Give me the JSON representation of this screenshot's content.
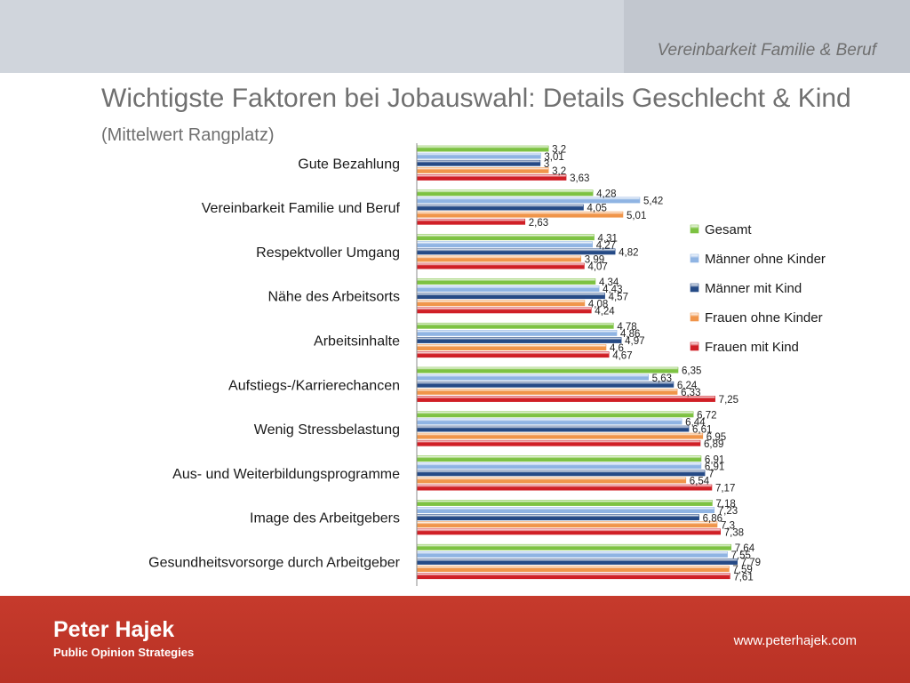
{
  "header": {
    "section_label": "Vereinbarkeit Familie & Beruf"
  },
  "slide": {
    "title": "Wichtigste Faktoren bei Jobauswahl: Details Geschlecht & Kind",
    "subtitle": "(Mittelwert Rangplatz)"
  },
  "footer": {
    "brand_name": "Peter Hajek",
    "brand_tagline": "Public Opinion Strategies",
    "url": "www.peterhajek.com"
  },
  "chart_data": {
    "type": "bar",
    "orientation": "horizontal",
    "categories": [
      "Gute Bezahlung",
      "Vereinbarkeit Familie und Beruf",
      "Respektvoller Umgang",
      "Nähe des Arbeitsorts",
      "Arbeitsinhalte",
      "Aufstiegs-/Karrierechancen",
      "Wenig Stressbelastung",
      "Aus- und Weiterbildungsprogramme",
      "Image des Arbeitgebers",
      "Gesundheitsvorsorge durch Arbeitgeber"
    ],
    "series": [
      {
        "name": "Gesamt",
        "color": "#7dc242",
        "values": [
          3.2,
          4.28,
          4.31,
          4.34,
          4.78,
          6.35,
          6.72,
          6.91,
          7.18,
          7.64
        ],
        "labels": [
          "3,2",
          "4,28",
          "4,31",
          "4,34",
          "4,78",
          "6,35",
          "6,72",
          "6,91",
          "7,18",
          "7,64"
        ]
      },
      {
        "name": "Männer ohne Kinder",
        "color": "#8fb4e3",
        "values": [
          3.01,
          5.42,
          4.27,
          4.43,
          4.86,
          5.63,
          6.44,
          6.91,
          7.23,
          7.55
        ],
        "labels": [
          "3,01",
          "5,42",
          "4,27",
          "4,43",
          "4,86",
          "5,63",
          "6,44",
          "6,91",
          "7,23",
          "7,55"
        ]
      },
      {
        "name": "Männer mit Kind",
        "color": "#254a86",
        "values": [
          3,
          4.05,
          4.82,
          4.57,
          4.97,
          6.24,
          6.61,
          7,
          6.86,
          7.79
        ],
        "labels": [
          "3",
          "4,05",
          "4,82",
          "4,57",
          "4,97",
          "6,24",
          "6,61",
          "7",
          "6,86",
          "7,79"
        ]
      },
      {
        "name": "Frauen ohne Kinder",
        "color": "#f0954a",
        "values": [
          3.2,
          5.01,
          3.99,
          4.08,
          4.6,
          6.33,
          6.95,
          6.54,
          7.3,
          7.59
        ],
        "labels": [
          "3,2",
          "5,01",
          "3,99",
          "4,08",
          "4,6",
          "6,33",
          "6,95",
          "6,54",
          "7,3",
          "7,59"
        ]
      },
      {
        "name": "Frauen mit Kind",
        "color": "#d01f26",
        "values": [
          3.63,
          2.63,
          4.07,
          4.24,
          4.67,
          7.25,
          6.89,
          7.17,
          7.38,
          7.61
        ],
        "labels": [
          "3,63",
          "2,63",
          "4,07",
          "4,24",
          "4,67",
          "7,25",
          "6,89",
          "7,17",
          "7,38",
          "7,61"
        ]
      }
    ],
    "xlim": [
      0,
      8
    ],
    "legend_position": "right",
    "grid": false,
    "title": "",
    "xlabel": "",
    "ylabel": ""
  }
}
